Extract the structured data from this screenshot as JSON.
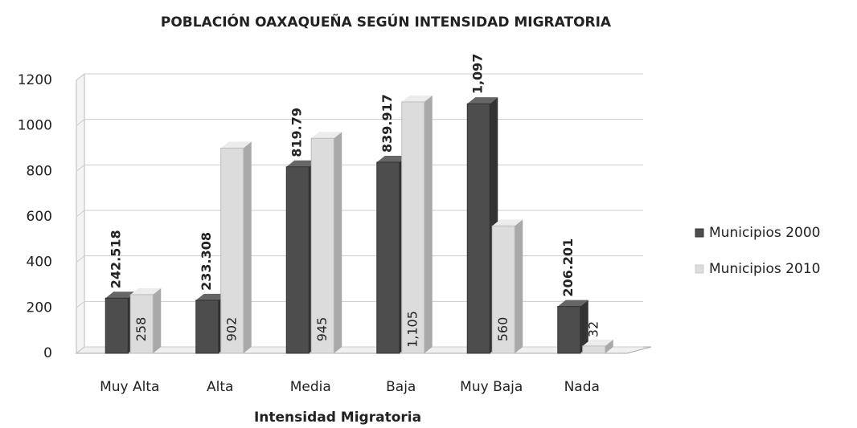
{
  "chart_data": {
    "type": "bar3d",
    "title": "POBLACIÓN OAXAQUEÑA SEGÚN INTENSIDAD MIGRATORIA",
    "x_label": "Intensidad Migratoria",
    "categories": [
      "Muy Alta",
      "Alta",
      "Media",
      "Baja",
      "Muy Baja",
      "Nada"
    ],
    "series": [
      {
        "name": "Municipios 2000",
        "color": "#4d4d4d",
        "values": [
          242.518,
          233.308,
          819.79,
          839.917,
          1097,
          206.201
        ],
        "value_labels": [
          "242.518",
          "233.308",
          "819.79",
          "839.917",
          "1,097",
          "206.201"
        ]
      },
      {
        "name": "Municipios 2010",
        "color": "#dcdcdc",
        "values": [
          258,
          902,
          945,
          1105,
          560,
          32
        ],
        "value_labels": [
          "258",
          "902",
          "945",
          "1,105",
          "560",
          "32"
        ]
      }
    ],
    "ylim": [
      0,
      1200
    ],
    "yticks": [
      0,
      200,
      400,
      600,
      800,
      1000,
      1200
    ],
    "grid": true,
    "legend": "right"
  }
}
